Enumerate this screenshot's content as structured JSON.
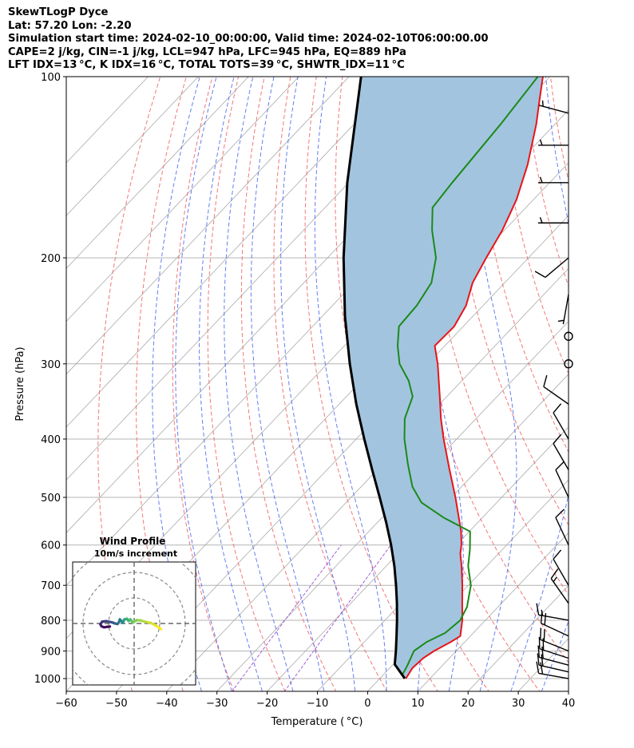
{
  "header": {
    "line1": "SkewTLogP Dyce",
    "line2": "Lat: 57.20   Lon: -2.20",
    "line3": "Simulation start time: 2024-02-10_00:00:00, Valid time: 2024-02-10T06:00:00.00",
    "line4": "CAPE=2 j/kg, CIN=-1 j/kg, LCL=947 hPa, LFC=945 hPa, EQ=889 hPa",
    "line5": "LFT IDX=13 °C, K IDX=16 °C, TOTAL TOTS=39 °C, SHWTR_IDX=11 °C"
  },
  "colors": {
    "temperature": "#e8141a",
    "dewpoint": "#1a8a1a",
    "parcel": "#000000",
    "cape_fill": "#a3c4de",
    "dry_adiabat": "#f0686a",
    "moist_adiabat": "#4b66f0",
    "mixing_ratio": "#9b4fd0",
    "isotherm": "#aaaaaa",
    "isobar": "#b4b4b4"
  },
  "chart_data": {
    "type": "skew-t",
    "xlabel": "Temperature ( °C)",
    "ylabel": "Pressure (hPa)",
    "xlim": [
      -60,
      40
    ],
    "ylim": [
      1050,
      100
    ],
    "xticks": [
      "−60",
      "−50",
      "−40",
      "−30",
      "−20",
      "−10",
      "0",
      "10",
      "20",
      "30",
      "40"
    ],
    "yticks": [
      "100",
      "200",
      "300",
      "400",
      "500",
      "600",
      "700",
      "800",
      "900",
      "1000"
    ],
    "temperature": [
      {
        "p": 1000,
        "t": 5.2
      },
      {
        "p": 960,
        "t": 4.5
      },
      {
        "p": 925,
        "t": 4.8
      },
      {
        "p": 900,
        "t": 5.6
      },
      {
        "p": 870,
        "t": 7.2
      },
      {
        "p": 850,
        "t": 8.0
      },
      {
        "p": 800,
        "t": 5.4
      },
      {
        "p": 750,
        "t": 2.2
      },
      {
        "p": 700,
        "t": -1.2
      },
      {
        "p": 650,
        "t": -5.0
      },
      {
        "p": 620,
        "t": -7.6
      },
      {
        "p": 600,
        "t": -9.0
      },
      {
        "p": 570,
        "t": -11.6
      },
      {
        "p": 500,
        "t": -19.2
      },
      {
        "p": 450,
        "t": -25.6
      },
      {
        "p": 400,
        "t": -32.6
      },
      {
        "p": 370,
        "t": -37.0
      },
      {
        "p": 340,
        "t": -41.4
      },
      {
        "p": 300,
        "t": -48.0
      },
      {
        "p": 280,
        "t": -52.0
      },
      {
        "p": 260,
        "t": -51.8
      },
      {
        "p": 240,
        "t": -53.4
      },
      {
        "p": 220,
        "t": -56.4
      },
      {
        "p": 200,
        "t": -58.4
      },
      {
        "p": 180,
        "t": -60.4
      },
      {
        "p": 160,
        "t": -63.4
      },
      {
        "p": 140,
        "t": -67.8
      },
      {
        "p": 120,
        "t": -73.7
      },
      {
        "p": 110,
        "t": -77.4
      },
      {
        "p": 100,
        "t": -81.4
      }
    ],
    "dewpoint": [
      {
        "p": 990,
        "t": 3.9
      },
      {
        "p": 950,
        "t": 3.0
      },
      {
        "p": 900,
        "t": 1.6
      },
      {
        "p": 870,
        "t": 2.4
      },
      {
        "p": 840,
        "t": 4.4
      },
      {
        "p": 800,
        "t": 5.0
      },
      {
        "p": 760,
        "t": 3.8
      },
      {
        "p": 700,
        "t": 0.5
      },
      {
        "p": 650,
        "t": -3.7
      },
      {
        "p": 610,
        "t": -6.5
      },
      {
        "p": 570,
        "t": -9.8
      },
      {
        "p": 540,
        "t": -17.8
      },
      {
        "p": 510,
        "t": -25.0
      },
      {
        "p": 480,
        "t": -29.8
      },
      {
        "p": 440,
        "t": -35.0
      },
      {
        "p": 400,
        "t": -40.4
      },
      {
        "p": 370,
        "t": -44.2
      },
      {
        "p": 340,
        "t": -46.8
      },
      {
        "p": 320,
        "t": -50.6
      },
      {
        "p": 300,
        "t": -55.6
      },
      {
        "p": 280,
        "t": -59.4
      },
      {
        "p": 260,
        "t": -62.8
      },
      {
        "p": 240,
        "t": -63.2
      },
      {
        "p": 220,
        "t": -64.6
      },
      {
        "p": 200,
        "t": -68.4
      },
      {
        "p": 180,
        "t": -74.4
      },
      {
        "p": 165,
        "t": -78.6
      },
      {
        "p": 150,
        "t": -79.4
      },
      {
        "p": 120,
        "t": -80.8
      },
      {
        "p": 100,
        "t": -82.4
      }
    ],
    "parcel": [
      {
        "p": 1000,
        "t": 5.0
      },
      {
        "p": 947,
        "t": 0.3
      },
      {
        "p": 900,
        "t": -2.0
      },
      {
        "p": 850,
        "t": -4.7
      },
      {
        "p": 800,
        "t": -7.6
      },
      {
        "p": 750,
        "t": -10.8
      },
      {
        "p": 700,
        "t": -14.4
      },
      {
        "p": 650,
        "t": -18.4
      },
      {
        "p": 600,
        "t": -23.0
      },
      {
        "p": 550,
        "t": -28.3
      },
      {
        "p": 500,
        "t": -34.3
      },
      {
        "p": 450,
        "t": -41.0
      },
      {
        "p": 400,
        "t": -48.4
      },
      {
        "p": 350,
        "t": -56.6
      },
      {
        "p": 300,
        "t": -65.5
      },
      {
        "p": 250,
        "t": -75.5
      },
      {
        "p": 200,
        "t": -86.8
      },
      {
        "p": 150,
        "t": -100.3
      },
      {
        "p": 100,
        "t": -117.6
      }
    ],
    "wind_barbs": [
      {
        "p": 1000,
        "speed_kt": 20,
        "dir_deg": 280
      },
      {
        "p": 975,
        "speed_kt": 20,
        "dir_deg": 283
      },
      {
        "p": 950,
        "speed_kt": 20,
        "dir_deg": 285
      },
      {
        "p": 925,
        "speed_kt": 20,
        "dir_deg": 288
      },
      {
        "p": 900,
        "speed_kt": 20,
        "dir_deg": 292
      },
      {
        "p": 850,
        "speed_kt": 20,
        "dir_deg": 295
      },
      {
        "p": 800,
        "speed_kt": 15,
        "dir_deg": 280
      },
      {
        "p": 750,
        "speed_kt": 15,
        "dir_deg": 325
      },
      {
        "p": 700,
        "speed_kt": 10,
        "dir_deg": 330
      },
      {
        "p": 600,
        "speed_kt": 10,
        "dir_deg": 335
      },
      {
        "p": 500,
        "speed_kt": 10,
        "dir_deg": 335
      },
      {
        "p": 450,
        "speed_kt": 10,
        "dir_deg": 330
      },
      {
        "p": 400,
        "speed_kt": 10,
        "dir_deg": 330
      },
      {
        "p": 350,
        "speed_kt": 10,
        "dir_deg": 305
      },
      {
        "p": 300,
        "speed_kt": 0,
        "dir_deg": 0
      },
      {
        "p": 270,
        "speed_kt": 0,
        "dir_deg": 0
      },
      {
        "p": 230,
        "speed_kt": 5,
        "dir_deg": 190
      },
      {
        "p": 200,
        "speed_kt": 10,
        "dir_deg": 230
      },
      {
        "p": 175,
        "speed_kt": 5,
        "dir_deg": 270
      },
      {
        "p": 150,
        "speed_kt": 5,
        "dir_deg": 270
      },
      {
        "p": 130,
        "speed_kt": 5,
        "dir_deg": 270
      },
      {
        "p": 115,
        "speed_kt": 5,
        "dir_deg": 285
      }
    ],
    "hodograph": {
      "title": "Wind Profile",
      "subtitle": "10m/s increment",
      "rings_ms": [
        10,
        20,
        30
      ],
      "points": [
        {
          "u": 10.5,
          "v": -2.2
        },
        {
          "u": 8.5,
          "v": -0.8
        },
        {
          "u": 6.5,
          "v": 0.2
        },
        {
          "u": 4.5,
          "v": 0.6
        },
        {
          "u": 2.5,
          "v": 1.2
        },
        {
          "u": 1.0,
          "v": 1.3
        },
        {
          "u": -0.5,
          "v": 0.4
        },
        {
          "u": -1.0,
          "v": 1.0
        },
        {
          "u": -1.5,
          "v": 1.6
        },
        {
          "u": -2.2,
          "v": 1.0
        },
        {
          "u": -2.8,
          "v": 1.8
        },
        {
          "u": -3.8,
          "v": 1.6
        },
        {
          "u": -4.2,
          "v": 0.8
        },
        {
          "u": -4.5,
          "v": 0.3
        },
        {
          "u": -5.0,
          "v": 1.0
        },
        {
          "u": -5.6,
          "v": 1.6
        },
        {
          "u": -6.0,
          "v": 0.4
        },
        {
          "u": -6.5,
          "v": -0.2
        },
        {
          "u": -7.5,
          "v": 0.0
        },
        {
          "u": -8.5,
          "v": 0.4
        },
        {
          "u": -9.5,
          "v": 0.6
        },
        {
          "u": -11.0,
          "v": 0.9
        },
        {
          "u": -12.5,
          "v": 0.7
        },
        {
          "u": -13.2,
          "v": -0.3
        },
        {
          "u": -12.8,
          "v": -1.1
        },
        {
          "u": -11.8,
          "v": -1.5
        },
        {
          "u": -10.5,
          "v": -1.3
        },
        {
          "u": -9.5,
          "v": -1.2
        }
      ]
    }
  }
}
